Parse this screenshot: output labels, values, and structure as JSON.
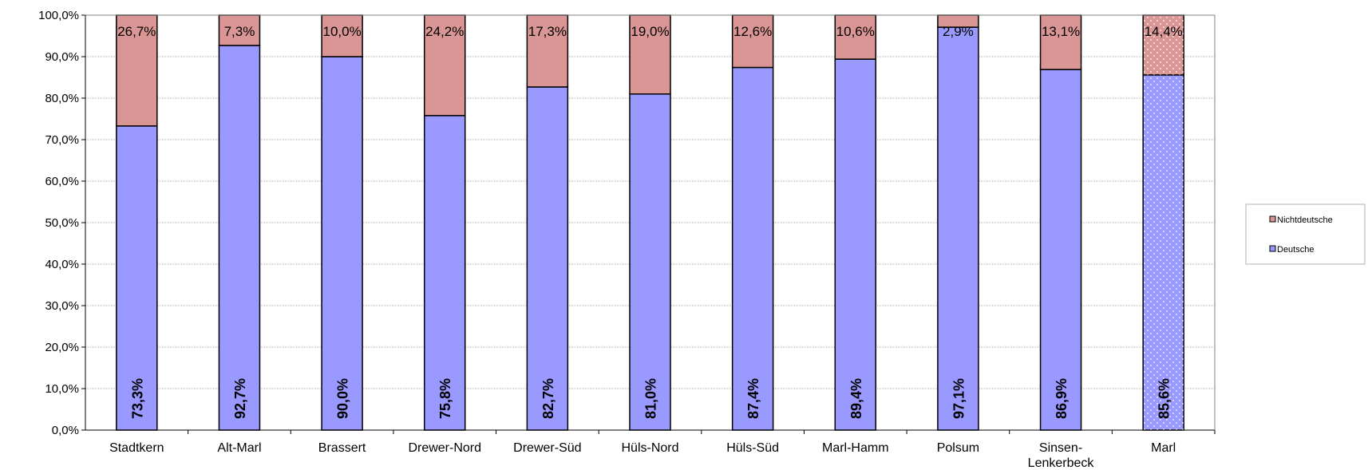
{
  "chart_data": {
    "type": "bar",
    "stacked": true,
    "categories": [
      [
        "Stadtkern"
      ],
      [
        "Alt-Marl"
      ],
      [
        "Brassert"
      ],
      [
        "Drewer-Nord"
      ],
      [
        "Drewer-Süd"
      ],
      [
        "Hüls-Nord"
      ],
      [
        "Hüls-Süd"
      ],
      [
        "Marl-Hamm"
      ],
      [
        "Polsum"
      ],
      [
        "Sinsen-",
        "Lenkerbeck"
      ],
      [
        "Marl"
      ]
    ],
    "series": [
      {
        "name": "Deutsche",
        "color": "#9999ff",
        "values": [
          73.3,
          92.7,
          90.0,
          75.8,
          82.7,
          81.0,
          87.4,
          89.4,
          97.1,
          86.9,
          85.6
        ],
        "labels": [
          "73,3%",
          "92,7%",
          "90,0%",
          "75,8%",
          "82,7%",
          "81,0%",
          "87,4%",
          "89,4%",
          "97,1%",
          "86,9%",
          "85,6%"
        ]
      },
      {
        "name": "Nichtdeutsche",
        "color": "#da9694",
        "values": [
          26.7,
          7.3,
          10.0,
          24.2,
          17.3,
          19.0,
          12.6,
          10.6,
          2.9,
          13.1,
          14.4
        ],
        "labels": [
          "26,7%",
          "7,3%",
          "10,0%",
          "24,2%",
          "17,3%",
          "19,0%",
          "12,6%",
          "10,6%",
          "2,9%",
          "13,1%",
          "14,4%"
        ]
      }
    ],
    "highlighted_category": "Marl",
    "y_ticks": [
      "0,0%",
      "10,0%",
      "20,0%",
      "30,0%",
      "40,0%",
      "50,0%",
      "60,0%",
      "70,0%",
      "80,0%",
      "90,0%",
      "100,0%"
    ],
    "ylim": [
      0,
      100
    ],
    "grid": true,
    "legend_position": "right",
    "legend": [
      "Nichtdeutsche",
      "Deutsche"
    ]
  }
}
